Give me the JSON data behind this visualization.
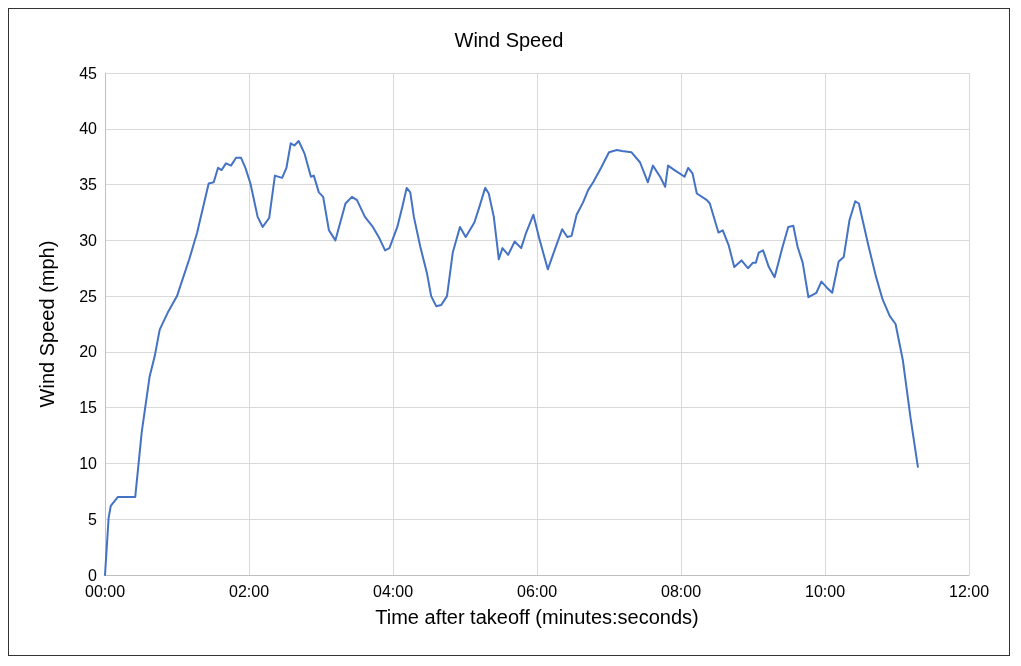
{
  "chart_data": {
    "type": "line",
    "title": "Wind Speed",
    "xlabel": "Time after takeoff (minutes:seconds)",
    "ylabel": "Wind Speed (mph)",
    "xlim": [
      0,
      12
    ],
    "xticks": [
      {
        "value": 0,
        "label": "00:00"
      },
      {
        "value": 2,
        "label": "02:00"
      },
      {
        "value": 4,
        "label": "04:00"
      },
      {
        "value": 6,
        "label": "06:00"
      },
      {
        "value": 8,
        "label": "08:00"
      },
      {
        "value": 10,
        "label": "10:00"
      },
      {
        "value": 12,
        "label": "12:00"
      }
    ],
    "ylim": [
      0,
      45
    ],
    "yticks": [
      0,
      5,
      10,
      15,
      20,
      25,
      30,
      35,
      40,
      45
    ],
    "grid": true,
    "marker": "none",
    "line_style": "solid",
    "series": [
      {
        "color": "#4472c4",
        "x": [
          0,
          0.05,
          0.08,
          0.18,
          0.42,
          0.51,
          0.62,
          0.69,
          0.76,
          0.87,
          1.0,
          1.17,
          1.28,
          1.44,
          1.51,
          1.57,
          1.62,
          1.68,
          1.75,
          1.82,
          1.89,
          1.95,
          2.02,
          2.12,
          2.19,
          2.28,
          2.36,
          2.46,
          2.52,
          2.58,
          2.63,
          2.69,
          2.77,
          2.86,
          2.9,
          2.97,
          3.03,
          3.11,
          3.2,
          3.34,
          3.43,
          3.5,
          3.61,
          3.72,
          3.81,
          3.89,
          3.95,
          4.06,
          4.13,
          4.19,
          4.24,
          4.29,
          4.38,
          4.47,
          4.53,
          4.6,
          4.67,
          4.75,
          4.83,
          4.93,
          5.01,
          5.13,
          5.2,
          5.28,
          5.33,
          5.4,
          5.47,
          5.52,
          5.6,
          5.69,
          5.78,
          5.85,
          5.95,
          6.03,
          6.15,
          6.21,
          6.35,
          6.42,
          6.48,
          6.55,
          6.64,
          6.71,
          6.78,
          6.89,
          7.0,
          7.11,
          7.18,
          7.31,
          7.43,
          7.54,
          7.61,
          7.71,
          7.78,
          7.82,
          7.91,
          8.05,
          8.1,
          8.16,
          8.22,
          8.36,
          8.4,
          8.52,
          8.58,
          8.66,
          8.74,
          8.84,
          8.93,
          9.0,
          9.04,
          9.08,
          9.14,
          9.22,
          9.3,
          9.41,
          9.49,
          9.56,
          9.62,
          9.69,
          9.77,
          9.88,
          9.95,
          10.02,
          10.1,
          10.19,
          10.26,
          10.34,
          10.42,
          10.47,
          10.6,
          10.71,
          10.8,
          10.9,
          10.98,
          11.08,
          11.19,
          11.29
        ],
        "values": [
          0,
          5.1,
          6.2,
          7,
          7,
          12.8,
          17.8,
          19.6,
          22,
          23.5,
          25,
          28.3,
          30.7,
          35.1,
          35.2,
          36.5,
          36.3,
          36.9,
          36.7,
          37.4,
          37.4,
          36.5,
          35.1,
          32.1,
          31.2,
          32,
          35.8,
          35.6,
          36.5,
          38.7,
          38.5,
          38.9,
          37.8,
          35.7,
          35.8,
          34.3,
          33.9,
          30.9,
          30,
          33.3,
          33.9,
          33.6,
          32.1,
          31.2,
          30.2,
          29.1,
          29.3,
          31.2,
          33,
          34.7,
          34.3,
          32.1,
          29.4,
          27.1,
          25,
          24.1,
          24.2,
          25,
          28.9,
          31.2,
          30.3,
          31.6,
          33,
          34.7,
          34.2,
          32.1,
          28.3,
          29.3,
          28.7,
          29.9,
          29.3,
          30.7,
          32.3,
          30.2,
          27.4,
          28.5,
          31,
          30.3,
          30.4,
          32.3,
          33.4,
          34.5,
          35.2,
          36.5,
          37.9,
          38.1,
          38,
          37.9,
          37,
          35.2,
          36.7,
          35.7,
          34.8,
          36.7,
          36.3,
          35.7,
          36.5,
          36,
          34.2,
          33.6,
          33.3,
          30.7,
          30.9,
          29.6,
          27.6,
          28.2,
          27.5,
          28,
          28,
          28.9,
          29.1,
          27.6,
          26.7,
          29.4,
          31.2,
          31.3,
          29.4,
          28,
          24.9,
          25.3,
          26.3,
          25.8,
          25.3,
          28.1,
          28.5,
          31.8,
          33.5,
          33.3,
          29.6,
          26.7,
          24.7,
          23.2,
          22.5,
          19.3,
          14,
          9.7
        ]
      }
    ]
  }
}
